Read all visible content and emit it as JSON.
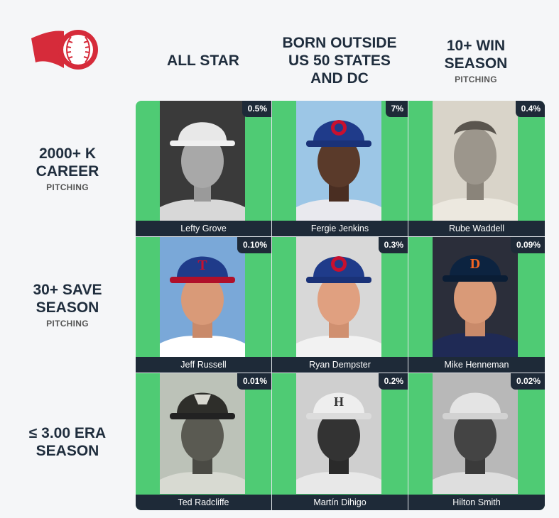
{
  "colors": {
    "correct": "#4fcb74",
    "dark": "#1e2a38",
    "logo_red": "#d62b3a"
  },
  "logo": {
    "icon": "baseball-logo-icon"
  },
  "columns": [
    {
      "title": "ALL STAR",
      "subtitle": ""
    },
    {
      "title": "BORN OUTSIDE\nUS 50 STATES\nAND DC",
      "subtitle": ""
    },
    {
      "title": "10+ WIN\nSEASON",
      "subtitle": "PITCHING"
    }
  ],
  "rows": [
    {
      "title": "2000+ K\nCAREER",
      "subtitle": "PITCHING"
    },
    {
      "title": "30+ SAVE\nSEASON",
      "subtitle": "PITCHING"
    },
    {
      "title": "≤ 3.00 ERA\nSEASON",
      "subtitle": ""
    }
  ],
  "cells": [
    {
      "player": "Lefty Grove",
      "percent": "0.5%"
    },
    {
      "player": "Fergie Jenkins",
      "percent": "7%"
    },
    {
      "player": "Rube Waddell",
      "percent": "0.4%"
    },
    {
      "player": "Jeff Russell",
      "percent": "0.10%"
    },
    {
      "player": "Ryan Dempster",
      "percent": "0.3%"
    },
    {
      "player": "Mike Henneman",
      "percent": "0.09%"
    },
    {
      "player": "Ted Radcliffe",
      "percent": "0.01%"
    },
    {
      "player": "Martín Dihigo",
      "percent": "0.2%"
    },
    {
      "player": "Hilton Smith",
      "percent": "0.02%"
    }
  ]
}
